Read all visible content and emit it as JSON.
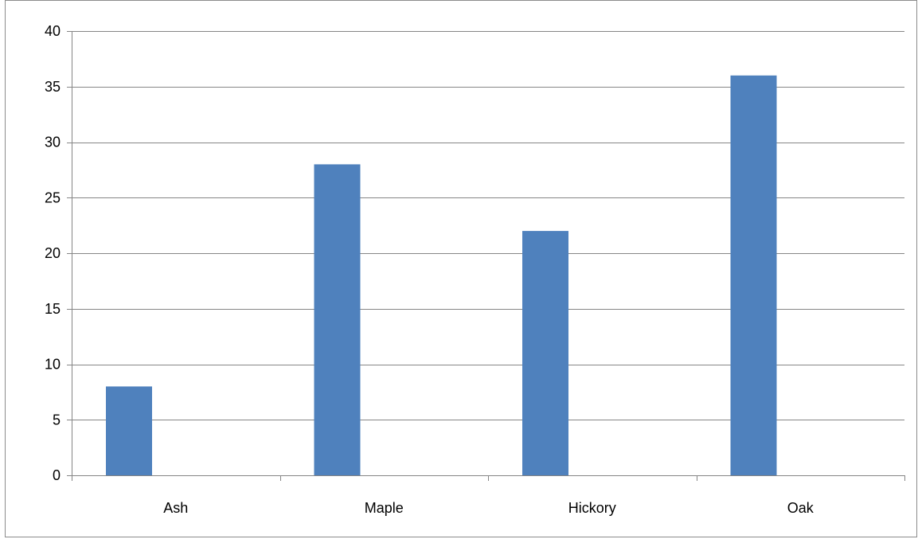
{
  "chart_data": {
    "type": "bar",
    "categories": [
      "Ash",
      "Maple",
      "Hickory",
      "Oak"
    ],
    "values": [
      8,
      28,
      22,
      36
    ],
    "title": "",
    "xlabel": "",
    "ylabel": "",
    "ylim": [
      0,
      40
    ],
    "yticks": [
      "0",
      "5",
      "10",
      "15",
      "20",
      "25",
      "30",
      "35",
      "40"
    ],
    "grid": true,
    "legend": "none",
    "bar_color": "#4f81bd",
    "grid_color": "#868686"
  }
}
